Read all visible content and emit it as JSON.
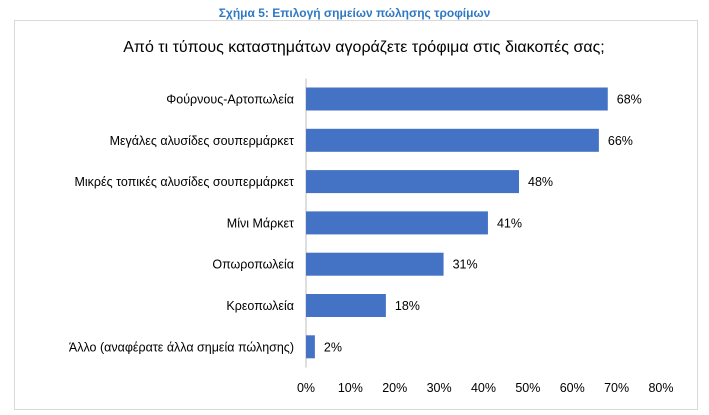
{
  "caption": "Σχήμα 5: Επιλογή σημείων πώλησης τροφίμων",
  "colors": {
    "caption": "#2f78c4",
    "bar": "#4472c4",
    "axis": "#bfbfbf"
  },
  "chart_data": {
    "type": "bar",
    "orientation": "horizontal",
    "title": "Από τι τύπους καταστημάτων αγοράζετε τρόφιμα στις διακοπές σας;",
    "categories": [
      "Φούρνους-Αρτοπωλεία",
      "Μεγάλες αλυσίδες σουπερμάρκετ",
      "Μικρές τοπικές αλυσίδες σουπερμάρκετ",
      "Μίνι Μάρκετ",
      "Οπωροπωλεία",
      "Κρεοπωλεία",
      "Άλλο (αναφέρατε άλλα σημεία πώλησης)"
    ],
    "values": [
      68,
      66,
      48,
      41,
      31,
      18,
      2
    ],
    "data_labels": [
      "68%",
      "66%",
      "48%",
      "41%",
      "31%",
      "18%",
      "2%"
    ],
    "xlim": [
      0,
      80
    ],
    "x_ticks": [
      0,
      10,
      20,
      30,
      40,
      50,
      60,
      70,
      80
    ],
    "x_tick_labels": [
      "0%",
      "10%",
      "20%",
      "30%",
      "40%",
      "50%",
      "60%",
      "70%",
      "80%"
    ],
    "grid": false,
    "legend": false
  }
}
